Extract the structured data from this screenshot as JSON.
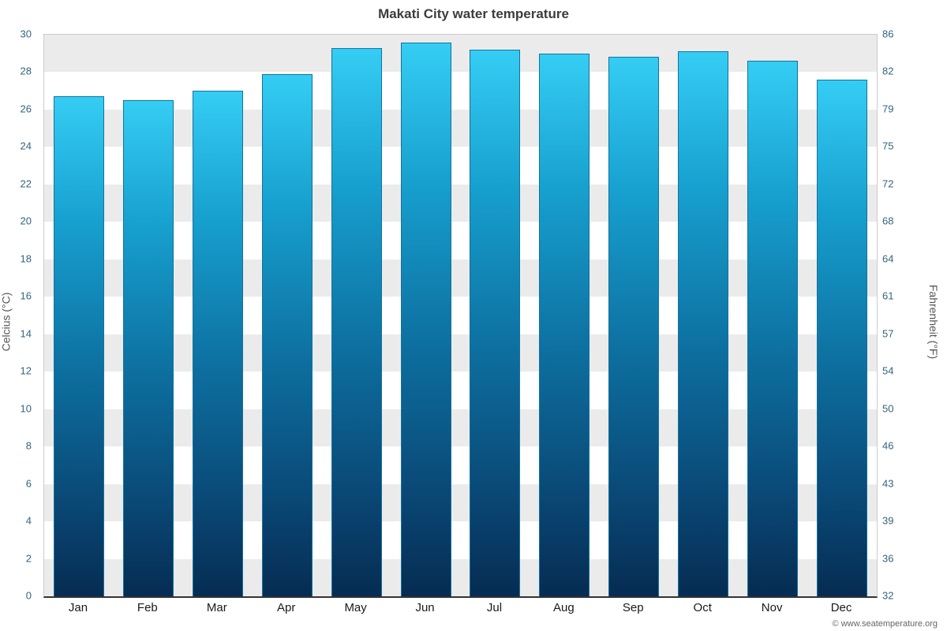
{
  "title": "Makati City water temperature",
  "attribution": "© www.seatemperature.org",
  "chart_data": {
    "type": "bar",
    "title": "Makati City water temperature",
    "categories": [
      "Jan",
      "Feb",
      "Mar",
      "Apr",
      "May",
      "Jun",
      "Jul",
      "Aug",
      "Sep",
      "Oct",
      "Nov",
      "Dec"
    ],
    "values": [
      26.7,
      26.5,
      27.0,
      27.9,
      29.3,
      29.6,
      29.2,
      29.0,
      28.8,
      29.1,
      28.6,
      27.6
    ],
    "ylabel_left": "Celcius (°C)",
    "ylabel_right": "Fahrenheit (°F)",
    "xlabel": "",
    "ylim": [
      0,
      30
    ],
    "yticks_celsius": [
      0,
      2,
      4,
      6,
      8,
      10,
      12,
      14,
      16,
      18,
      20,
      22,
      24,
      26,
      28,
      30
    ],
    "yticks_fahrenheit": [
      32,
      36,
      39,
      43,
      46,
      50,
      54,
      57,
      61,
      64,
      68,
      72,
      75,
      79,
      82,
      86
    ],
    "grid": "alternating horizontal bands",
    "legend": "none",
    "colors": {
      "bar_gradient_top": "#35cdf4",
      "bar_gradient_bottom": "#062c52",
      "bar_border": "#1173a0",
      "band_gray": "#ebebeb",
      "band_white": "#ffffff",
      "tick_label": "#33647e",
      "title_text": "#3c3c3c"
    }
  }
}
